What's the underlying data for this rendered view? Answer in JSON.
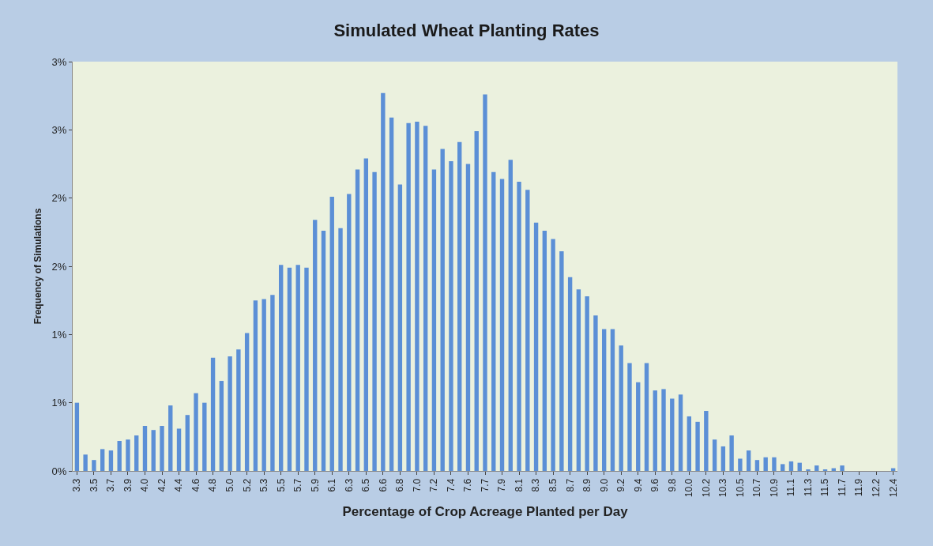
{
  "chart_data": {
    "type": "bar",
    "title": "Simulated Wheat Planting Rates",
    "xlabel": "Percentage of Crop Acreage Planted per Day",
    "ylabel": "Frequency of Simulations",
    "categories": [
      "3.3",
      null,
      "3.5",
      null,
      "3.7",
      null,
      "3.9",
      null,
      "4.0",
      null,
      "4.2",
      null,
      "4.4",
      null,
      "4.6",
      null,
      "4.8",
      null,
      "5.0",
      null,
      "5.2",
      null,
      "5.3",
      null,
      "5.5",
      null,
      "5.7",
      null,
      "5.9",
      null,
      "6.1",
      null,
      "6.3",
      null,
      "6.5",
      null,
      "6.6",
      null,
      "6.8",
      null,
      "7.0",
      null,
      "7.2",
      null,
      "7.4",
      null,
      "7.6",
      null,
      "7.7",
      null,
      "7.9",
      null,
      "8.1",
      null,
      "8.3",
      null,
      "8.5",
      null,
      "8.7",
      null,
      "8.9",
      null,
      "9.0",
      null,
      "9.2",
      null,
      "9.4",
      null,
      "9.6",
      null,
      "9.8",
      null,
      "10.0",
      null,
      "10.2",
      null,
      "10.3",
      null,
      "10.5",
      null,
      "10.7",
      null,
      "10.9",
      null,
      "11.1",
      null,
      "11.3",
      null,
      "11.5",
      null,
      "11.7",
      null,
      "11.9",
      null,
      "12.2",
      null,
      "12.4"
    ],
    "values": [
      0.5,
      0.12,
      0.08,
      0.16,
      0.15,
      0.22,
      0.23,
      0.26,
      0.33,
      0.3,
      0.33,
      0.48,
      0.31,
      0.41,
      0.57,
      0.5,
      0.83,
      0.66,
      0.84,
      0.89,
      1.01,
      1.25,
      1.26,
      1.29,
      1.51,
      1.49,
      1.51,
      1.49,
      1.84,
      1.76,
      2.01,
      1.78,
      2.03,
      2.21,
      2.29,
      2.19,
      2.77,
      2.59,
      2.1,
      2.55,
      2.56,
      2.53,
      2.21,
      2.36,
      2.27,
      2.41,
      2.25,
      2.49,
      2.76,
      2.19,
      2.14,
      2.28,
      2.12,
      2.06,
      1.82,
      1.76,
      1.7,
      1.61,
      1.42,
      1.33,
      1.28,
      1.14,
      1.04,
      1.04,
      0.92,
      0.79,
      0.65,
      0.79,
      0.59,
      0.6,
      0.53,
      0.56,
      0.4,
      0.36,
      0.44,
      0.23,
      0.18,
      0.26,
      0.09,
      0.15,
      0.08,
      0.1,
      0.1,
      0.05,
      0.07,
      0.06,
      0.01,
      0.04,
      0.01,
      0.02,
      0.04,
      0.0,
      0.0,
      0.0,
      0.0,
      0.0,
      0.02
    ],
    "color": "#5b8fd6",
    "ylim": [
      0,
      3.0
    ],
    "yticks": [
      {
        "value": 0,
        "label": "0%"
      },
      {
        "value": 0.5,
        "label": "1%"
      },
      {
        "value": 1.0,
        "label": "1%"
      },
      {
        "value": 1.5,
        "label": "2%"
      },
      {
        "value": 2.0,
        "label": "2%"
      },
      {
        "value": 2.5,
        "label": "3%"
      },
      {
        "value": 3.0,
        "label": "3%"
      }
    ],
    "grid": false
  }
}
